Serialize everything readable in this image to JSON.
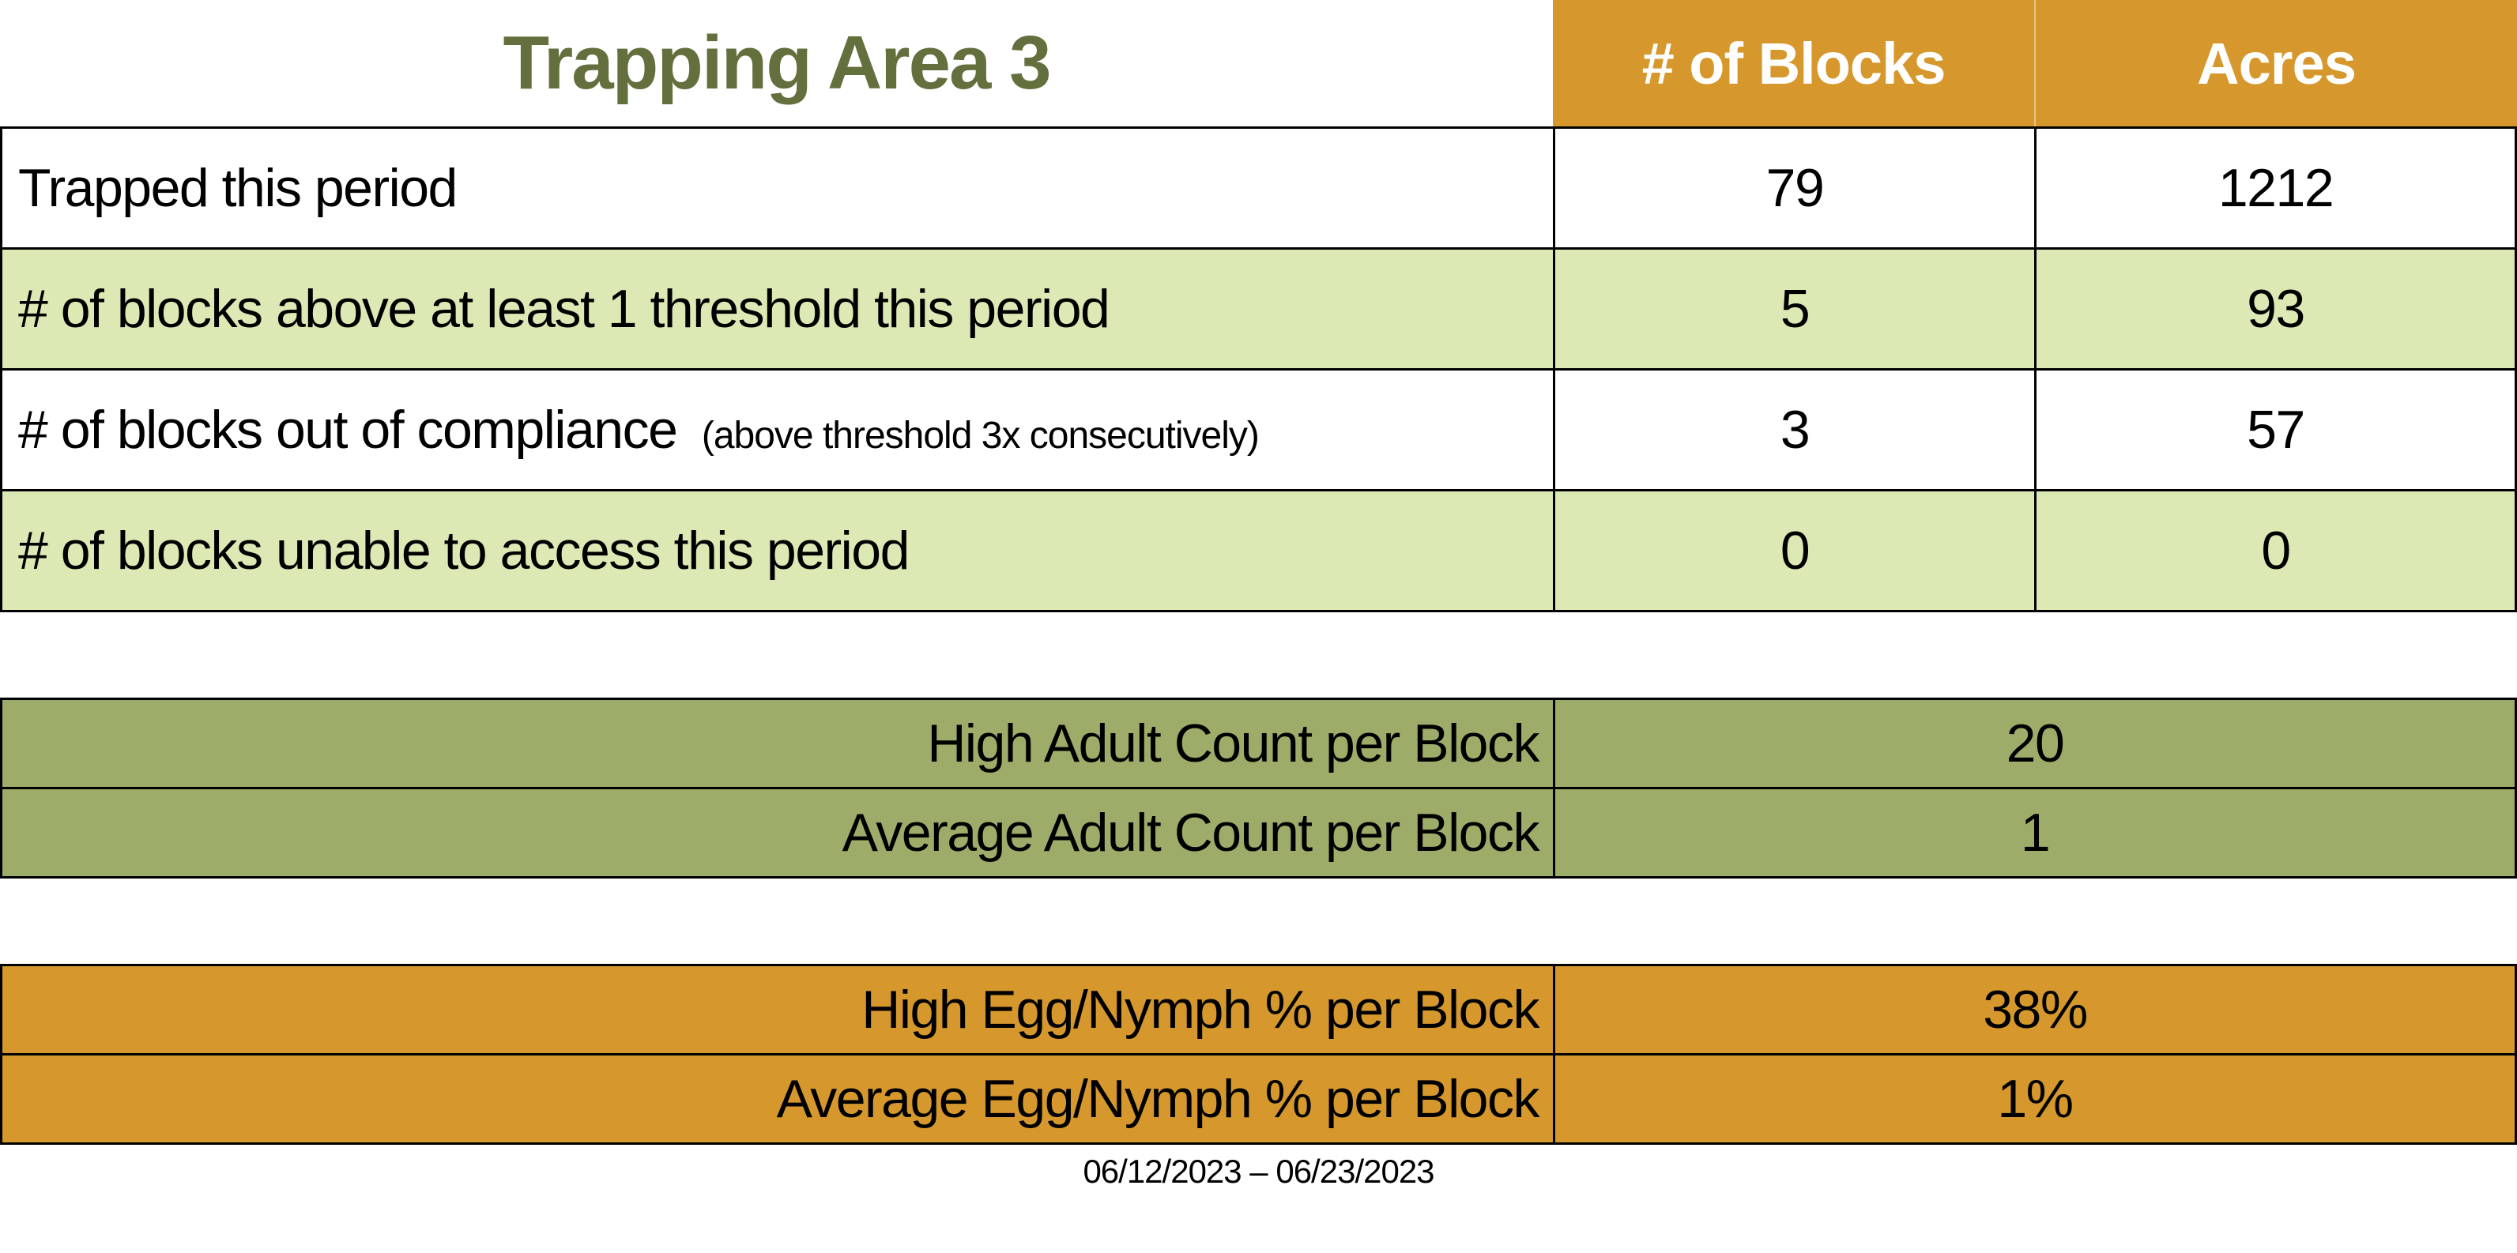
{
  "title": "Trapping Area 3",
  "colors": {
    "accent_orange": "#D6982D",
    "light_green": "#DCE9B4",
    "olive_green": "#9DAC69",
    "title_green": "#63703D"
  },
  "table": {
    "columns": {
      "blocks": "# of Blocks",
      "acres": "Acres"
    },
    "rows": [
      {
        "label": "Trapped this period",
        "blocks": "79",
        "acres": "1212"
      },
      {
        "label": "# of blocks above at least 1 threshold this period",
        "blocks": "5",
        "acres": "93"
      },
      {
        "label": "# of blocks out of compliance",
        "note": "(above threshold 3x consecutively)",
        "blocks": "3",
        "acres": "57"
      },
      {
        "label": "# of blocks unable to access this period",
        "blocks": "0",
        "acres": "0"
      }
    ]
  },
  "adult_section": {
    "rows": [
      {
        "label": "High Adult Count per Block",
        "value": "20"
      },
      {
        "label": "Average Adult Count per Block",
        "value": "1"
      }
    ]
  },
  "egg_section": {
    "rows": [
      {
        "label": "High Egg/Nymph % per Block",
        "value": "38%"
      },
      {
        "label": "Average Egg/Nymph % per Block",
        "value": "1%"
      }
    ]
  },
  "footer": {
    "date_range": "06/12/2023 – 06/23/2023"
  }
}
